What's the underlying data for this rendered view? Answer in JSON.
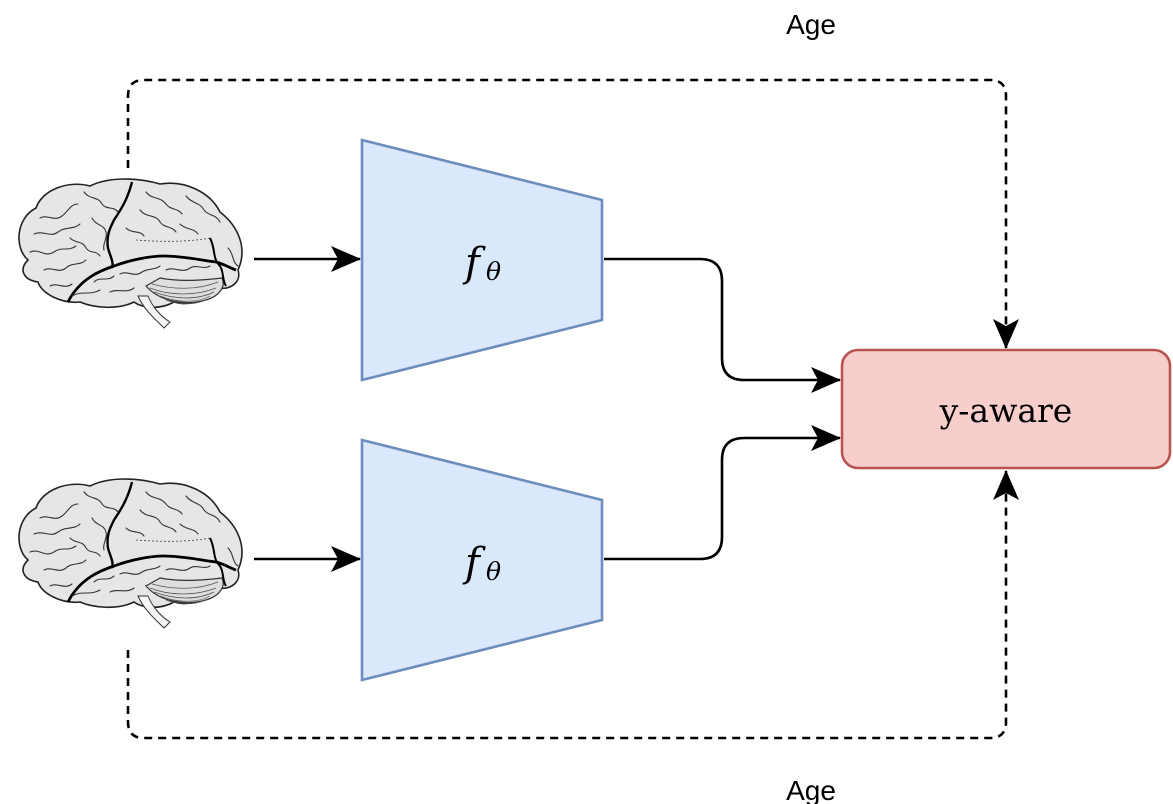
{
  "labels": {
    "age_top": "Age",
    "age_bottom": "Age"
  },
  "encoders": [
    {
      "symbol": "f",
      "subscript": "θ"
    },
    {
      "symbol": "f",
      "subscript": "θ"
    }
  ],
  "target": {
    "label": "y-aware"
  },
  "inputs": [
    {
      "icon": "brain-icon"
    },
    {
      "icon": "brain-icon"
    }
  ],
  "colors": {
    "encoder_fill": "#dae8fc",
    "encoder_stroke": "#6c8ebf",
    "target_fill": "#f8cecc",
    "target_stroke": "#b85450",
    "brain_fill": "#e6e6e6"
  }
}
